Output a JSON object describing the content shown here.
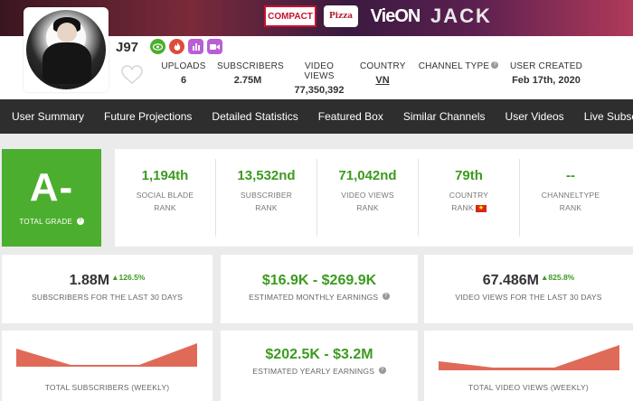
{
  "banner": {
    "logos": [
      "COMPACT",
      "Pizza",
      "VieON",
      "JACK"
    ]
  },
  "channel": {
    "name": "J97",
    "avatar": "channel-avatar-photo"
  },
  "badges": [
    {
      "icon": "eye-icon",
      "color": "#4cae2e"
    },
    {
      "icon": "flame-icon",
      "color": "#e04a3a"
    },
    {
      "icon": "chart-bars-icon",
      "color": "#b85fd6"
    },
    {
      "icon": "video-camera-icon",
      "color": "#b85fd6"
    }
  ],
  "header_stats": {
    "uploads": {
      "label": "UPLOADS",
      "value": "6"
    },
    "subscribers": {
      "label": "SUBSCRIBERS",
      "value": "2.75M"
    },
    "video_views": {
      "label": "VIDEO VIEWS",
      "value": "77,350,392"
    },
    "country": {
      "label": "COUNTRY",
      "value": "VN"
    },
    "channel_type": {
      "label": "CHANNEL TYPE",
      "value": ""
    },
    "user_created": {
      "label": "USER CREATED",
      "value": "Feb 17th, 2020"
    }
  },
  "nav": [
    "User Summary",
    "Future Projections",
    "Detailed Statistics",
    "Featured Box",
    "Similar Channels",
    "User Videos",
    "Live Subscribe"
  ],
  "grade": {
    "letter": "A-",
    "label": "TOTAL GRADE"
  },
  "ranks": [
    {
      "value": "1,194th",
      "line1": "SOCIAL BLADE",
      "line2": "RANK"
    },
    {
      "value": "13,532nd",
      "line1": "SUBSCRIBER",
      "line2": "RANK"
    },
    {
      "value": "71,042nd",
      "line1": "VIDEO VIEWS",
      "line2": "RANK"
    },
    {
      "value": "79th",
      "line1": "COUNTRY",
      "line2": "RANK"
    },
    {
      "value": "--",
      "line1": "CHANNELTYPE",
      "line2": "RANK"
    }
  ],
  "cards": {
    "subs30": {
      "value": "1.88M",
      "pct": "▲126.5%",
      "label": "SUBSCRIBERS FOR THE LAST 30 DAYS"
    },
    "monthly": {
      "value": "$16.9K - $269.9K",
      "label": "ESTIMATED MONTHLY EARNINGS"
    },
    "views30": {
      "value": "67.486M",
      "pct": "▲825.8%",
      "label": "VIDEO VIEWS FOR THE LAST 30 DAYS"
    },
    "subs_weekly": {
      "label": "TOTAL SUBSCRIBERS (WEEKLY)"
    },
    "yearly": {
      "value": "$202.5K - $3.2M",
      "label": "ESTIMATED YEARLY EARNINGS"
    },
    "views_weekly": {
      "label": "TOTAL VIDEO VIEWS (WEEKLY)"
    }
  },
  "colors": {
    "grade_green": "#4cae2e",
    "value_green": "#3b9b1f",
    "nav_bg": "#2e2e2e",
    "chart_fill": "#e06a58"
  }
}
